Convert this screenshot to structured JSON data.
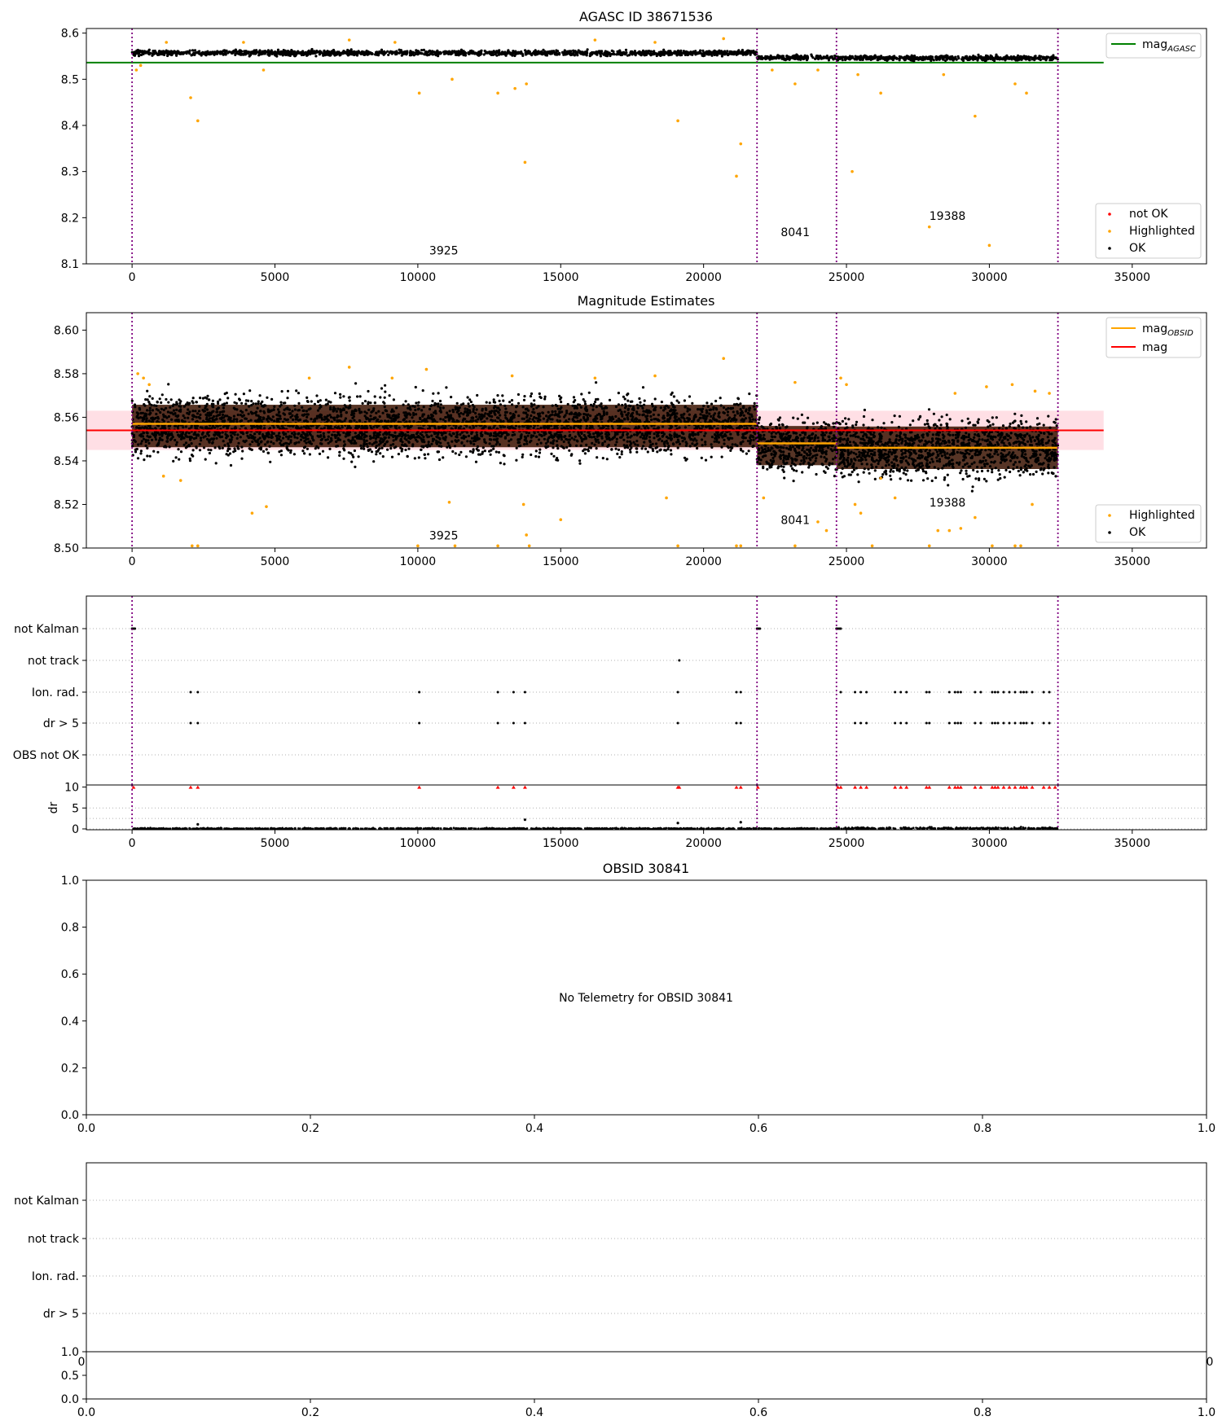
{
  "colors": {
    "ok": "#000000",
    "highlighted": "#ffa500",
    "not_ok": "#ff0000",
    "mag_agasc": "#008000",
    "mag_obsid": "#ffa500",
    "mag": "#ff0000",
    "obs_boundary": "#800080",
    "band": "#ffc0cb"
  },
  "x_ticks": [
    0,
    5000,
    10000,
    15000,
    20000,
    25000,
    30000,
    35000
  ],
  "unit_ticks": [
    0.0,
    0.2,
    0.4,
    0.6,
    0.8,
    1.0
  ],
  "flag_labels": [
    "not Kalman",
    "not track",
    "Ion. rad.",
    "dr > 5",
    "OBS not OK"
  ],
  "flag_labels_bottom": [
    "not Kalman",
    "not track",
    "Ion. rad.",
    "dr > 5"
  ],
  "chart_data": [
    {
      "id": "agasc",
      "type": "scatter",
      "title": "AGASC ID 38671536",
      "xlim": [
        -1600,
        37600
      ],
      "ylim": [
        8.1,
        8.61
      ],
      "yticks": [
        8.1,
        8.2,
        8.3,
        8.4,
        8.5,
        8.6
      ],
      "obs_boundaries": [
        0,
        21870,
        24650,
        32400
      ],
      "obs_labels": [
        {
          "text": "3925",
          "x": 10400,
          "y": 8.12
        },
        {
          "text": "8041",
          "x": 22700,
          "y": 8.16
        },
        {
          "text": "19388",
          "x": 27900,
          "y": 8.195
        }
      ],
      "mag_agasc": 8.536,
      "mag_agasc_extent": [
        -1600,
        34000
      ],
      "ok_bands": [
        {
          "x": [
            0,
            21870
          ],
          "center": 8.557,
          "spread": 0.012
        },
        {
          "x": [
            21870,
            24650
          ],
          "center": 8.547,
          "spread": 0.01
        },
        {
          "x": [
            24650,
            32400
          ],
          "center": 8.546,
          "spread": 0.011
        }
      ],
      "highlighted": [
        [
          150,
          8.52
        ],
        [
          300,
          8.53
        ],
        [
          2050,
          8.46
        ],
        [
          2300,
          8.41
        ],
        [
          4600,
          8.52
        ],
        [
          10050,
          8.47
        ],
        [
          11200,
          8.5
        ],
        [
          12800,
          8.47
        ],
        [
          13400,
          8.48
        ],
        [
          13800,
          8.49
        ],
        [
          13750,
          8.32
        ],
        [
          19100,
          8.41
        ],
        [
          21150,
          8.29
        ],
        [
          21300,
          8.36
        ],
        [
          22400,
          8.52
        ],
        [
          23200,
          8.49
        ],
        [
          24000,
          8.52
        ],
        [
          25200,
          8.3
        ],
        [
          25400,
          8.51
        ],
        [
          26200,
          8.47
        ],
        [
          27900,
          8.18
        ],
        [
          28400,
          8.51
        ],
        [
          29500,
          8.42
        ],
        [
          30000,
          8.14
        ],
        [
          30900,
          8.49
        ],
        [
          31300,
          8.47
        ],
        [
          1200,
          8.58
        ],
        [
          3900,
          8.58
        ],
        [
          7600,
          8.585
        ],
        [
          9200,
          8.58
        ],
        [
          16200,
          8.585
        ],
        [
          18300,
          8.58
        ],
        [
          20700,
          8.588
        ]
      ],
      "legend": [
        {
          "label": "mag",
          "sub": "AGASC",
          "kind": "line",
          "color": "#008000"
        }
      ],
      "legend2": [
        {
          "label": "not OK",
          "kind": "dot",
          "color": "#ff0000"
        },
        {
          "label": "Highlighted",
          "kind": "dot",
          "color": "#ffa500"
        },
        {
          "label": "OK",
          "kind": "dot",
          "color": "#000000"
        }
      ]
    },
    {
      "id": "estimates",
      "type": "scatter",
      "title": "Magnitude Estimates",
      "xlim": [
        -1600,
        37600
      ],
      "ylim": [
        8.5,
        8.608
      ],
      "yticks": [
        8.5,
        8.52,
        8.54,
        8.56,
        8.58,
        8.6
      ],
      "obs_boundaries": [
        0,
        21870,
        24650,
        32400
      ],
      "obs_labels": [
        {
          "text": "3925",
          "x": 10400,
          "y": 8.504
        },
        {
          "text": "8041",
          "x": 22700,
          "y": 8.511
        },
        {
          "text": "19388",
          "x": 27900,
          "y": 8.519
        }
      ],
      "mag": 8.554,
      "mag_band": [
        8.545,
        8.563
      ],
      "mag_extent": [
        -1600,
        34000
      ],
      "mag_obsid": [
        {
          "x": [
            0,
            21870
          ],
          "value": 8.557
        },
        {
          "x": [
            21870,
            24650
          ],
          "value": 8.548
        },
        {
          "x": [
            24650,
            32400
          ],
          "value": 8.546
        }
      ],
      "ok_bands": [
        {
          "x": [
            0,
            21870
          ],
          "center": 8.556,
          "spread": 0.013
        },
        {
          "x": [
            21870,
            24650
          ],
          "center": 8.547,
          "spread": 0.012
        },
        {
          "x": [
            24650,
            32400
          ],
          "center": 8.546,
          "spread": 0.013
        }
      ],
      "highlighted": [
        [
          200,
          8.58
        ],
        [
          400,
          8.578
        ],
        [
          600,
          8.575
        ],
        [
          1100,
          8.533
        ],
        [
          1700,
          8.531
        ],
        [
          2100,
          8.501
        ],
        [
          2300,
          8.501
        ],
        [
          4200,
          8.516
        ],
        [
          4700,
          8.519
        ],
        [
          6200,
          8.578
        ],
        [
          7600,
          8.583
        ],
        [
          9100,
          8.578
        ],
        [
          10000,
          8.501
        ],
        [
          10300,
          8.582
        ],
        [
          11100,
          8.521
        ],
        [
          11300,
          8.501
        ],
        [
          12800,
          8.501
        ],
        [
          13300,
          8.579
        ],
        [
          13700,
          8.52
        ],
        [
          13800,
          8.506
        ],
        [
          13900,
          8.501
        ],
        [
          15000,
          8.513
        ],
        [
          16200,
          8.578
        ],
        [
          18300,
          8.579
        ],
        [
          18700,
          8.523
        ],
        [
          19100,
          8.501
        ],
        [
          20700,
          8.587
        ],
        [
          21150,
          8.501
        ],
        [
          21300,
          8.501
        ],
        [
          22100,
          8.523
        ],
        [
          23200,
          8.501
        ],
        [
          23200,
          8.576
        ],
        [
          24000,
          8.512
        ],
        [
          24300,
          8.508
        ],
        [
          24800,
          8.578
        ],
        [
          25000,
          8.575
        ],
        [
          25300,
          8.52
        ],
        [
          25500,
          8.516
        ],
        [
          25900,
          8.501
        ],
        [
          26200,
          8.532
        ],
        [
          26700,
          8.523
        ],
        [
          27900,
          8.501
        ],
        [
          28200,
          8.508
        ],
        [
          28600,
          8.508
        ],
        [
          29000,
          8.509
        ],
        [
          29500,
          8.514
        ],
        [
          30100,
          8.501
        ],
        [
          30900,
          8.501
        ],
        [
          31100,
          8.501
        ],
        [
          31500,
          8.52
        ],
        [
          29900,
          8.574
        ],
        [
          30800,
          8.575
        ],
        [
          31600,
          8.572
        ],
        [
          32100,
          8.571
        ],
        [
          28800,
          8.571
        ]
      ],
      "legend": [
        {
          "label": "mag",
          "sub": "OBSID",
          "kind": "line",
          "color": "#ffa500"
        },
        {
          "label": "mag",
          "sub": "",
          "kind": "line",
          "color": "#ff0000"
        }
      ],
      "legend2": [
        {
          "label": "Highlighted",
          "kind": "dot",
          "color": "#ffa500"
        },
        {
          "label": "OK",
          "kind": "dot",
          "color": "#000000"
        }
      ]
    },
    {
      "id": "flags",
      "type": "scatter",
      "xlim": [
        -1600,
        37600
      ],
      "obs_boundaries": [
        0,
        21870,
        24650,
        32400
      ],
      "flag_points": {
        "not Kalman": [
          0,
          50,
          100,
          21870,
          21920,
          21970,
          24650,
          24700,
          24750,
          24800
        ],
        "not track": [
          19150
        ],
        "Ion. rad.": [
          2050,
          2300,
          10050,
          12800,
          13350,
          13750,
          19100,
          21150,
          21300,
          24800,
          25300,
          25500,
          25700,
          26700,
          26900,
          27100,
          27800,
          27900,
          28600,
          28800,
          28900,
          29000,
          29500,
          29700,
          30100,
          30200,
          30300,
          30500,
          30700,
          30900,
          31100,
          31200,
          31300,
          31500,
          31900,
          32100
        ],
        "dr > 5": [
          2050,
          2300,
          10050,
          12800,
          13350,
          13750,
          19100,
          21150,
          21300,
          25300,
          25500,
          25700,
          26700,
          26900,
          27100,
          27800,
          27900,
          28600,
          28800,
          28900,
          29000,
          29500,
          29700,
          30100,
          30200,
          30300,
          30500,
          30700,
          30900,
          31100,
          31200,
          31300,
          31500,
          31900,
          32100
        ]
      },
      "dr_ylabel": "dr",
      "dr_yticks": [
        0,
        5,
        10
      ],
      "dr_ylim": [
        -0.2,
        10.5
      ],
      "dr_clipped": [
        50,
        2050,
        2300,
        10050,
        12800,
        13350,
        13750,
        19100,
        19150,
        21150,
        21300,
        21900,
        24700,
        24800,
        25300,
        25500,
        25700,
        26700,
        26900,
        27100,
        27800,
        27900,
        28600,
        28800,
        28900,
        29000,
        29500,
        29700,
        30100,
        30200,
        30300,
        30500,
        30700,
        30900,
        31100,
        31200,
        31300,
        31500,
        31900,
        32100,
        32300
      ],
      "dr_outliers": [
        [
          13750,
          2.2
        ],
        [
          21300,
          1.6
        ],
        [
          2300,
          1.1
        ],
        [
          19100,
          1.4
        ]
      ]
    },
    {
      "id": "obsid-empty",
      "type": "scatter",
      "title": "OBSID 30841",
      "message": "No Telemetry for OBSID 30841",
      "xlim": [
        0,
        1
      ],
      "ylim": [
        0,
        1
      ]
    },
    {
      "id": "flags-empty",
      "type": "scatter",
      "xlim": [
        0,
        1
      ],
      "ylim": [
        0,
        1
      ],
      "dr_yticks": [
        0.0,
        0.5,
        1.0
      ],
      "overlap_xticks": [
        "0",
        "0"
      ]
    }
  ]
}
